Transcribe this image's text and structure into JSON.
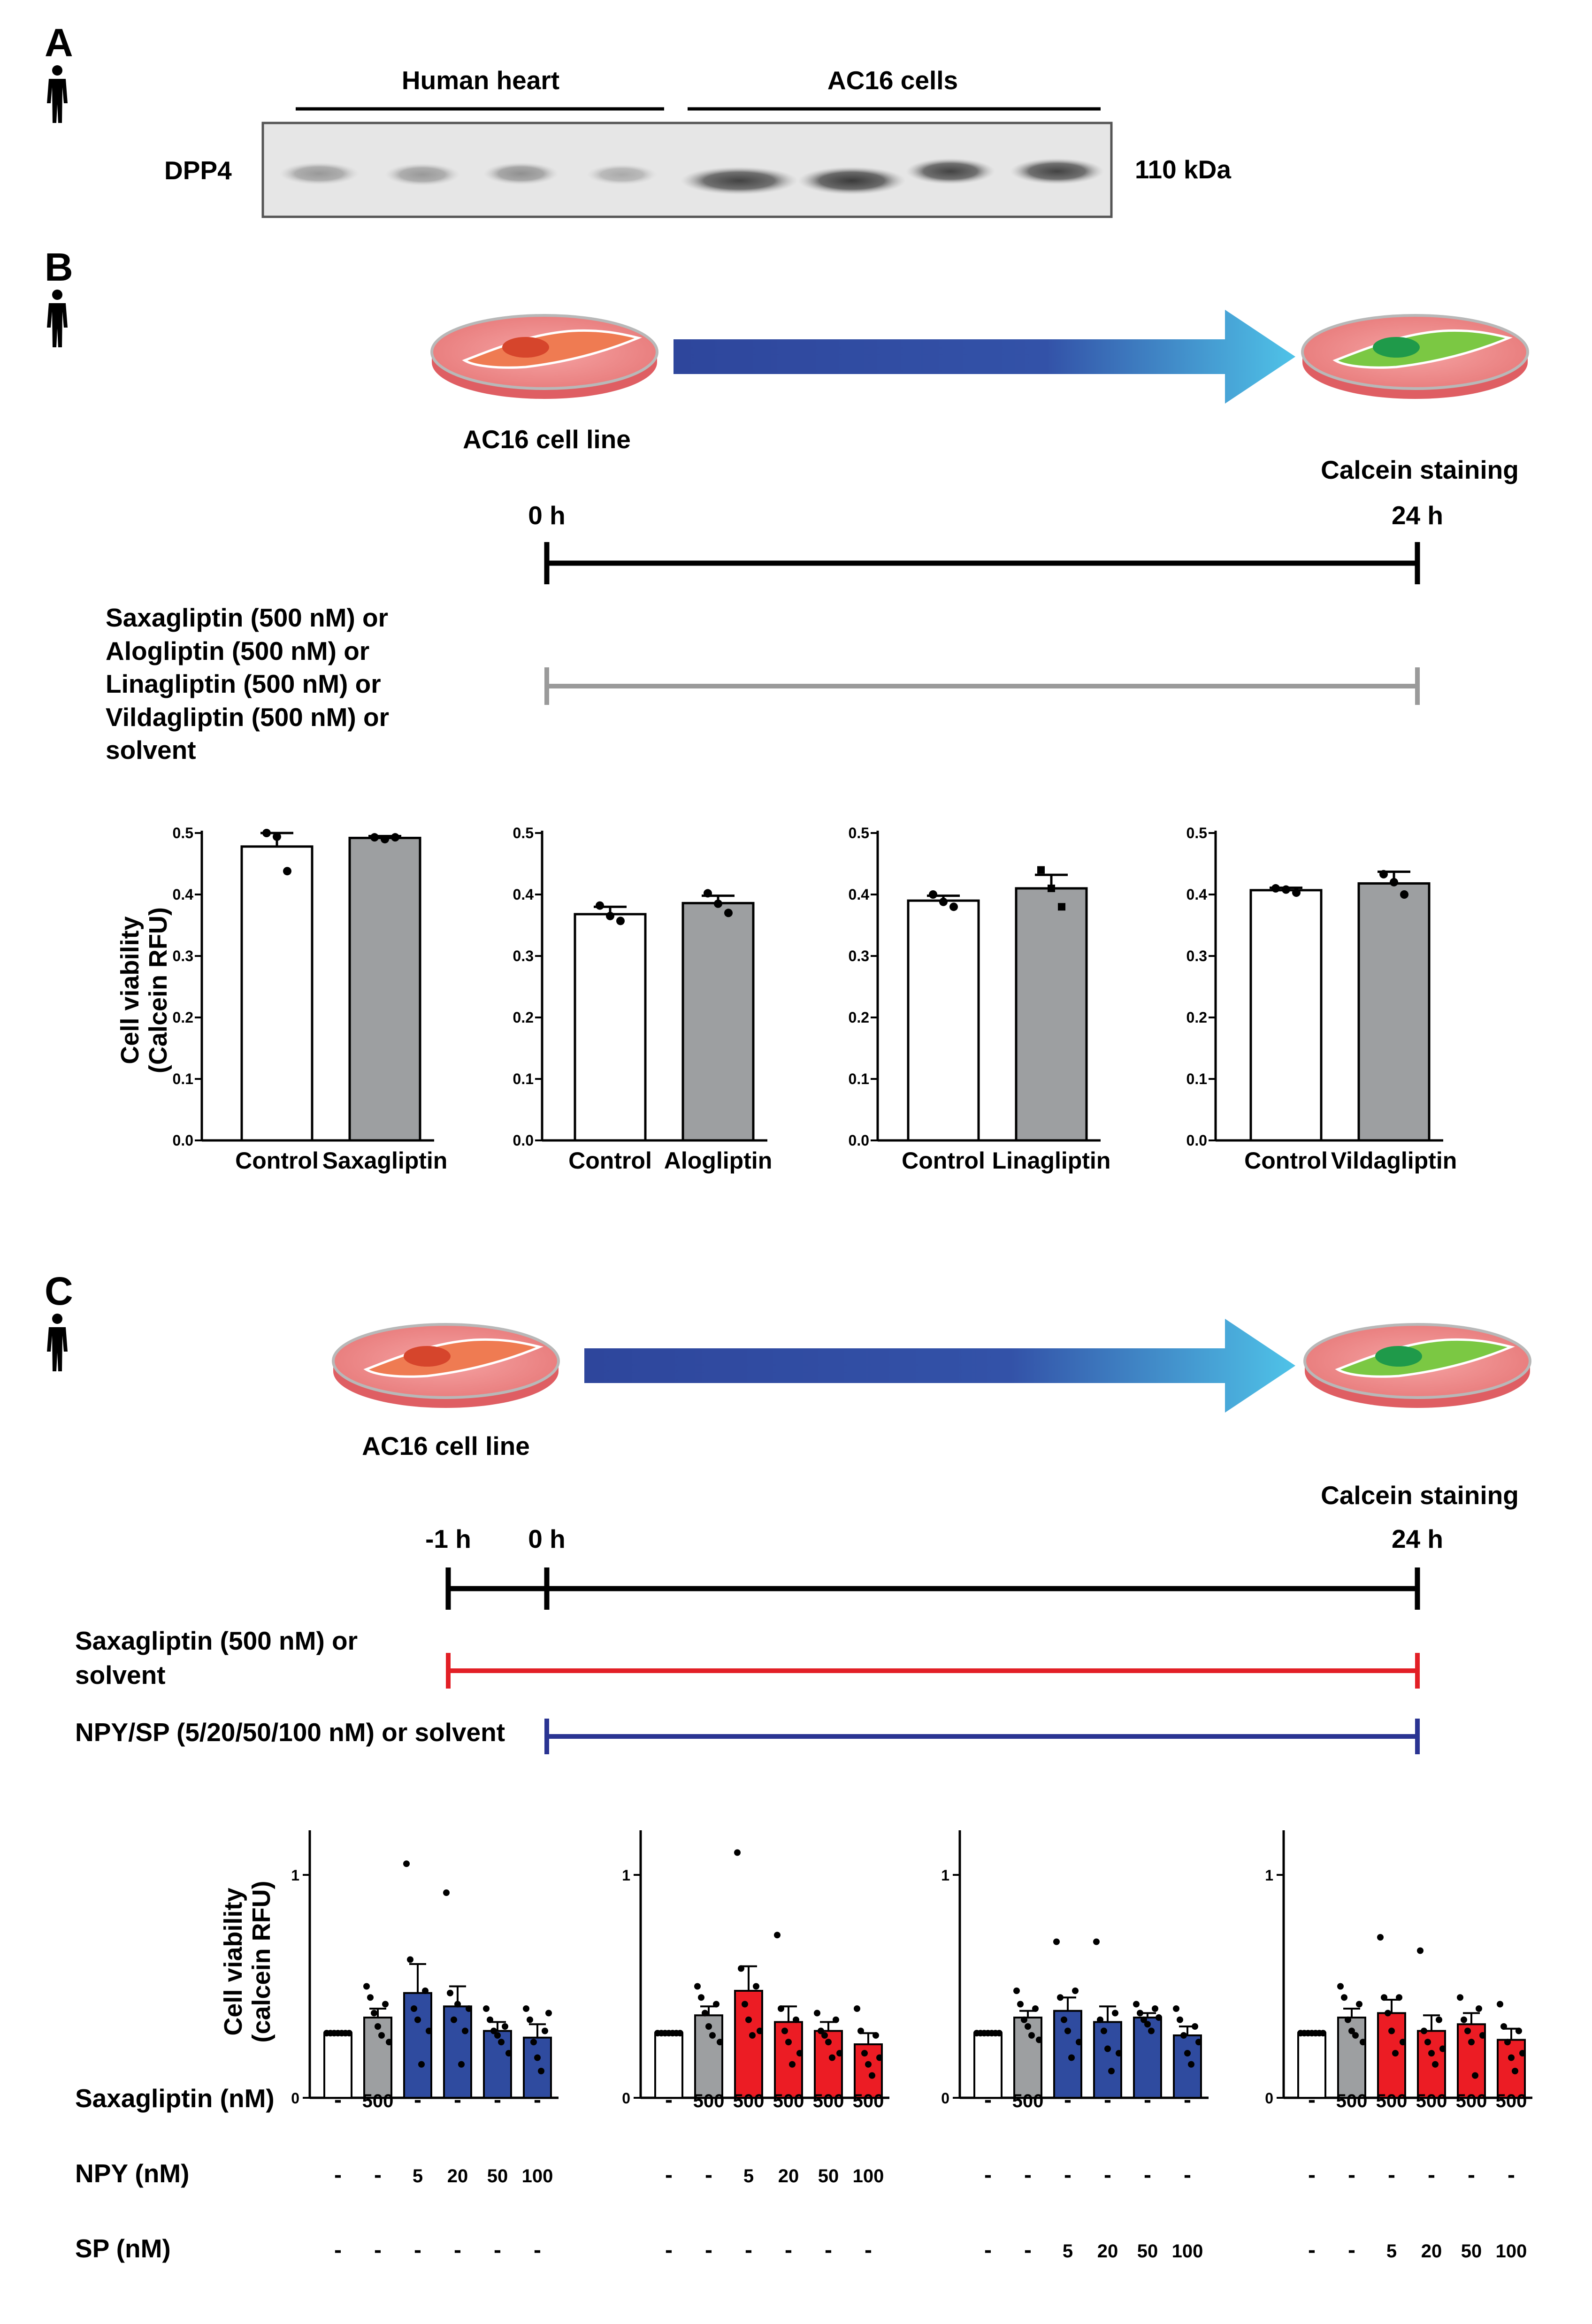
{
  "panels": {
    "A": "A",
    "B": "B",
    "C": "C"
  },
  "colors": {
    "white_bar": "#ffffff",
    "gray_bar": "#9d9fa1",
    "blue_bar": "#2f4b9f",
    "red_bar": "#ec1c24",
    "red_line": "#e21f26",
    "navy_line": "#2a3492",
    "gray_line": "#9a9a9a"
  },
  "panel_a": {
    "groups": [
      "Human heart",
      "AC16 cells"
    ],
    "protein": "DPP4",
    "size_marker": "110 kDa"
  },
  "panel_b": {
    "cell_line": "AC16 cell line",
    "endpoint": "Calcein staining",
    "time_start": "0 h",
    "time_end": "24 h",
    "treatment_lines": [
      "Saxagliptin (500 nM) or",
      "Alogliptin (500 nM) or",
      "Linagliptin (500 nM) or",
      "Vildagliptin (500 nM) or",
      "solvent"
    ],
    "ylabel_line1": "Cell viability",
    "ylabel_line2": "(Calcein RFU)"
  },
  "panel_c": {
    "cell_line": "AC16 cell line",
    "endpoint": "Calcein staining",
    "time_pre": "-1 h",
    "time_start": "0 h",
    "time_end": "24 h",
    "saxa_lines": [
      "Saxagliptin (500 nM) or",
      "solvent"
    ],
    "npy_sp_line": "NPY/SP (5/20/50/100 nM) or solvent",
    "ylabel_line1": "Cell viability",
    "ylabel_line2": "(calcein RFU)",
    "row_labels": [
      "Saxagliptin (nM)",
      "NPY (nM)",
      "SP (nM)"
    ],
    "conditions": [
      {
        "saxagliptin": [
          "-",
          "500",
          "-",
          "-",
          "-",
          "-"
        ],
        "npy": [
          "-",
          "-",
          "5",
          "20",
          "50",
          "100"
        ],
        "sp": [
          "-",
          "-",
          "-",
          "-",
          "-",
          "-"
        ]
      },
      {
        "saxagliptin": [
          "-",
          "500",
          "500",
          "500",
          "500",
          "500"
        ],
        "npy": [
          "-",
          "-",
          "5",
          "20",
          "50",
          "100"
        ],
        "sp": [
          "-",
          "-",
          "-",
          "-",
          "-",
          "-"
        ]
      },
      {
        "saxagliptin": [
          "-",
          "500",
          "-",
          "-",
          "-",
          "-"
        ],
        "npy": [
          "-",
          "-",
          "-",
          "-",
          "-",
          "-"
        ],
        "sp": [
          "-",
          "-",
          "5",
          "20",
          "50",
          "100"
        ]
      },
      {
        "saxagliptin": [
          "-",
          "500",
          "500",
          "500",
          "500",
          "500"
        ],
        "npy": [
          "-",
          "-",
          "-",
          "-",
          "-",
          "-"
        ],
        "sp": [
          "-",
          "-",
          "5",
          "20",
          "50",
          "100"
        ]
      }
    ]
  },
  "chart_data": [
    {
      "type": "bar",
      "panel": "B",
      "categories": [
        "Control",
        "Saxagliptin"
      ],
      "values": [
        0.478,
        0.492
      ],
      "errors": [
        0.022,
        0.003
      ],
      "points": [
        [
          0.5,
          0.494,
          0.438
        ],
        [
          0.493,
          0.49,
          0.493
        ]
      ],
      "colors": [
        "#ffffff",
        "#9d9fa1"
      ],
      "ylim": [
        0,
        0.5
      ],
      "yticks": [
        "0.0",
        "0.1",
        "0.2",
        "0.3",
        "0.4",
        "0.5"
      ]
    },
    {
      "type": "bar",
      "panel": "B",
      "categories": [
        "Control",
        "Alogliptin"
      ],
      "values": [
        0.368,
        0.386
      ],
      "errors": [
        0.012,
        0.012
      ],
      "points": [
        [
          0.382,
          0.365,
          0.357
        ],
        [
          0.402,
          0.385,
          0.37
        ]
      ],
      "colors": [
        "#ffffff",
        "#9d9fa1"
      ],
      "ylim": [
        0,
        0.5
      ],
      "yticks": [
        "0.0",
        "0.1",
        "0.2",
        "0.3",
        "0.4",
        "0.5"
      ]
    },
    {
      "type": "bar",
      "panel": "B",
      "categories": [
        "Control",
        "Linagliptin"
      ],
      "values": [
        0.39,
        0.41
      ],
      "errors": [
        0.008,
        0.022
      ],
      "points": [
        [
          0.4,
          0.388,
          0.38
        ],
        [
          0.44,
          0.41,
          0.38
        ]
      ],
      "colors": [
        "#ffffff",
        "#9d9fa1"
      ],
      "ylim": [
        0,
        0.5
      ],
      "yticks": [
        "0.0",
        "0.1",
        "0.2",
        "0.3",
        "0.4",
        "0.5"
      ]
    },
    {
      "type": "bar",
      "panel": "B",
      "categories": [
        "Control",
        "Vildagliptin"
      ],
      "values": [
        0.407,
        0.418
      ],
      "errors": [
        0.004,
        0.019
      ],
      "points": [
        [
          0.41,
          0.408,
          0.403
        ],
        [
          0.433,
          0.42,
          0.4
        ]
      ],
      "colors": [
        "#ffffff",
        "#9d9fa1"
      ],
      "ylim": [
        0,
        0.5
      ],
      "yticks": [
        "0.0",
        "0.1",
        "0.2",
        "0.3",
        "0.4",
        "0.5"
      ]
    },
    {
      "type": "bar",
      "panel": "C",
      "series": "NPY",
      "values": [
        0.29,
        0.36,
        0.47,
        0.41,
        0.3,
        0.27
      ],
      "errors": [
        0.005,
        0.04,
        0.13,
        0.09,
        0.04,
        0.06
      ],
      "colors": [
        "#ffffff",
        "#9d9fa1",
        "#2f4b9f",
        "#2f4b9f",
        "#2f4b9f",
        "#2f4b9f"
      ],
      "ylim": [
        0,
        1.2
      ],
      "yticks": [
        "0",
        "1"
      ],
      "points": [
        [
          0.29,
          0.29,
          0.29,
          0.29,
          0.29,
          0.29,
          0.29
        ],
        [
          0.5,
          0.45,
          0.38,
          0.32,
          0.28,
          0.42,
          0.25
        ],
        [
          1.05,
          0.62,
          0.4,
          0.35,
          0.15,
          0.48,
          0.3
        ],
        [
          0.92,
          0.47,
          0.35,
          0.42,
          0.15,
          0.3,
          0.4
        ],
        [
          0.4,
          0.35,
          0.3,
          0.28,
          0.25,
          0.32,
          0.2
        ],
        [
          0.4,
          0.35,
          0.25,
          0.18,
          0.12,
          0.3,
          0.38
        ]
      ]
    },
    {
      "type": "bar",
      "panel": "C",
      "series": "Saxagliptin + NPY",
      "values": [
        0.29,
        0.37,
        0.48,
        0.34,
        0.3,
        0.24
      ],
      "errors": [
        0.005,
        0.04,
        0.11,
        0.07,
        0.04,
        0.05
      ],
      "colors": [
        "#ffffff",
        "#9d9fa1",
        "#ec1c24",
        "#ec1c24",
        "#ec1c24",
        "#ec1c24"
      ],
      "ylim": [
        0,
        1.2
      ],
      "yticks": [
        "0",
        "1"
      ],
      "points": [
        [
          0.29,
          0.29,
          0.29,
          0.29,
          0.29,
          0.29,
          0.29
        ],
        [
          0.5,
          0.45,
          0.38,
          0.32,
          0.28,
          0.42,
          0.25
        ],
        [
          1.1,
          0.58,
          0.42,
          0.35,
          0.28,
          0.5,
          0.3
        ],
        [
          0.73,
          0.4,
          0.3,
          0.25,
          0.15,
          0.35,
          0.2
        ],
        [
          0.38,
          0.3,
          0.28,
          0.25,
          0.18,
          0.35,
          0.2
        ],
        [
          0.4,
          0.3,
          0.2,
          0.15,
          0.1,
          0.28,
          0.18
        ]
      ]
    },
    {
      "type": "bar",
      "panel": "C",
      "series": "SP",
      "values": [
        0.29,
        0.36,
        0.39,
        0.34,
        0.36,
        0.28
      ],
      "errors": [
        0.005,
        0.03,
        0.06,
        0.07,
        0.02,
        0.04
      ],
      "colors": [
        "#ffffff",
        "#9d9fa1",
        "#2f4b9f",
        "#2f4b9f",
        "#2f4b9f",
        "#2f4b9f"
      ],
      "ylim": [
        0,
        1.2
      ],
      "yticks": [
        "0",
        "1"
      ],
      "points": [
        [
          0.29,
          0.29,
          0.29,
          0.29,
          0.29,
          0.29,
          0.29
        ],
        [
          0.48,
          0.42,
          0.35,
          0.32,
          0.28,
          0.4,
          0.26
        ],
        [
          0.7,
          0.45,
          0.35,
          0.3,
          0.18,
          0.48,
          0.25
        ],
        [
          0.7,
          0.35,
          0.3,
          0.22,
          0.12,
          0.38,
          0.2
        ],
        [
          0.42,
          0.38,
          0.35,
          0.33,
          0.3,
          0.4,
          0.36
        ],
        [
          0.4,
          0.35,
          0.28,
          0.2,
          0.15,
          0.32,
          0.25
        ]
      ]
    },
    {
      "type": "bar",
      "panel": "C",
      "series": "Saxagliptin + SP",
      "values": [
        0.29,
        0.36,
        0.38,
        0.3,
        0.33,
        0.26
      ],
      "errors": [
        0.005,
        0.04,
        0.06,
        0.07,
        0.05,
        0.05
      ],
      "colors": [
        "#ffffff",
        "#9d9fa1",
        "#ec1c24",
        "#ec1c24",
        "#ec1c24",
        "#ec1c24"
      ],
      "ylim": [
        0,
        1.2
      ],
      "yticks": [
        "0",
        "1"
      ],
      "points": [
        [
          0.29,
          0.29,
          0.29,
          0.29,
          0.29,
          0.29,
          0.29
        ],
        [
          0.5,
          0.45,
          0.35,
          0.3,
          0.28,
          0.42,
          0.25
        ],
        [
          0.72,
          0.45,
          0.38,
          0.3,
          0.2,
          0.45,
          0.25
        ],
        [
          0.66,
          0.3,
          0.25,
          0.2,
          0.15,
          0.35,
          0.22
        ],
        [
          0.45,
          0.35,
          0.3,
          0.25,
          0.1,
          0.4,
          0.28
        ],
        [
          0.42,
          0.32,
          0.25,
          0.18,
          0.12,
          0.3,
          0.2
        ]
      ]
    }
  ]
}
